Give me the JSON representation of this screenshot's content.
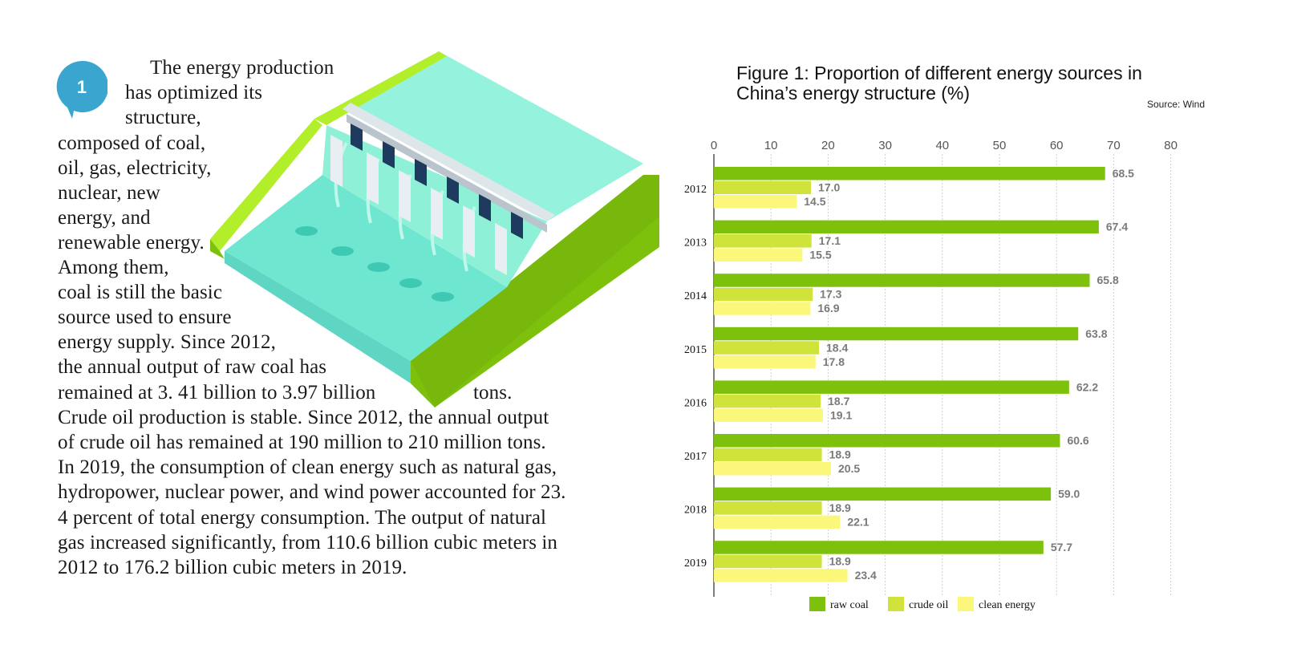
{
  "badge": {
    "number": "1",
    "color": "#3aa6cf"
  },
  "article": {
    "lines": [
      "The energy production",
      "has optimized its",
      "structure,",
      "composed of coal,",
      "oil, gas, electricity,",
      "nuclear, new",
      "energy, and",
      "renewable energy.",
      "Among them,",
      "coal is still the basic",
      "source used to ensure",
      "energy supply. Since 2012,",
      "the annual output of raw coal has",
      "remained at 3. 41 billion to 3.97 billion",
      "tons.",
      "Crude oil production is stable. Since 2012, the annual output",
      "of crude oil has remained at 190 million to 210 million tons.",
      "In 2019, the consumption of clean energy such as natural gas,",
      "hydropower, nuclear power, and wind power accounted for 23.",
      "4 percent of total energy consumption. The output of natural",
      "gas increased significantly, from 110.6 billion cubic meters in",
      "2012 to 176.2 billion cubic meters in 2019."
    ]
  },
  "illustration": {
    "subject": "hydropower-dam-icon"
  },
  "chart_data": {
    "type": "bar",
    "orientation": "horizontal",
    "title": "Figure 1: Proportion of different energy sources in China’s energy structure (%)",
    "source": "Source: Wind",
    "categories": [
      "2012",
      "2013",
      "2014",
      "2015",
      "2016",
      "2017",
      "2018",
      "2019"
    ],
    "series": [
      {
        "name": "raw coal",
        "color": "#7ec10d",
        "values": [
          68.5,
          67.4,
          65.8,
          63.8,
          62.2,
          60.6,
          59.0,
          57.7
        ],
        "labels": [
          "68.5",
          "67.4",
          "65.8",
          "63.8",
          "62.2",
          "60.6",
          "59.0",
          "57.7"
        ]
      },
      {
        "name": "crude oil",
        "color": "#cfe33a",
        "values": [
          17.0,
          17.1,
          17.3,
          18.4,
          18.7,
          18.9,
          18.9,
          18.9
        ],
        "labels": [
          "17.0",
          "17.1",
          "17.3",
          "18.4",
          "18.7",
          "18.9",
          "18.9",
          "18.9"
        ]
      },
      {
        "name": "clean energy",
        "color": "#fbf77a",
        "values": [
          14.5,
          15.5,
          16.9,
          17.8,
          19.1,
          20.5,
          22.1,
          23.4
        ],
        "labels": [
          "14.5",
          "15.5",
          "16.9",
          "17.8",
          "19.1",
          "20.5",
          "22.1",
          "23.4"
        ]
      }
    ],
    "xlim": [
      0,
      80
    ],
    "xticks": [
      "0",
      "10",
      "20",
      "30",
      "40",
      "50",
      "60",
      "70",
      "80"
    ],
    "grid": true,
    "legend_position": "bottom"
  }
}
